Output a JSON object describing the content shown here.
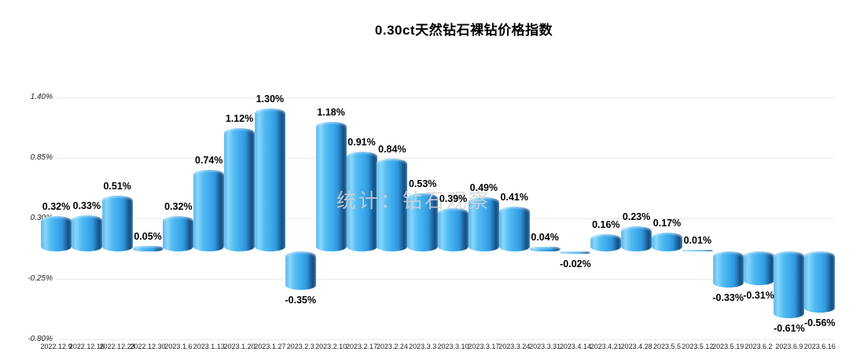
{
  "page": {
    "watermark": "统计：钻石观察"
  },
  "colors": {
    "background": "#ffffff",
    "bar_main": "#42aeec",
    "bar_highlight": "#8bd6fa",
    "bar_shadow_edge": "#174f82",
    "gridline": "#e9e9e9",
    "value_label_text": "#000000",
    "axis_text": "#222222",
    "watermark_text": "#d2d2d2"
  },
  "chart_data": {
    "type": "bar",
    "title": "0.30ct天然钻石裸钻价格指数",
    "xlabel": "",
    "ylabel": "",
    "unit": "%",
    "ylim": [
      -0.8,
      1.4
    ],
    "yticks": [
      1.4,
      0.85,
      0.3,
      -0.25,
      -0.8
    ],
    "ytick_labels": [
      "1.40%",
      "0.85%",
      "0.30%",
      "-0.25%",
      "-0.80%"
    ],
    "grid": true,
    "legend": false,
    "categories": [
      "2022.12.9",
      "2022.12.16",
      "2022.12.23",
      "2022.12.30",
      "2023.1.6",
      "2023.1.13",
      "2023.1.20",
      "2023.1.27",
      "2023.2.3",
      "2023.2.10",
      "2023.2.17",
      "2023.2.24",
      "2023.3.3",
      "2023.3.10",
      "2023.3.17",
      "2023.3.24",
      "2023.3.31",
      "2023.4.14",
      "2023.4.21",
      "2023.4.28",
      "2023.5.5",
      "2023.5.12",
      "2023.5.19",
      "2023.6.2",
      "2023.6.9",
      "2023.6.16"
    ],
    "values": [
      0.32,
      0.33,
      0.51,
      0.05,
      0.32,
      0.74,
      1.12,
      1.3,
      -0.35,
      1.18,
      0.91,
      0.84,
      0.53,
      0.39,
      0.49,
      0.41,
      0.04,
      -0.02,
      0.16,
      0.23,
      0.17,
      0.01,
      -0.33,
      -0.31,
      -0.61,
      -0.56
    ],
    "value_labels": [
      "0.32%",
      "0.33%",
      "0.51%",
      "0.05%",
      "0.32%",
      "0.74%",
      "1.12%",
      "1.30%",
      "-0.35%",
      "1.18%",
      "0.91%",
      "0.84%",
      "0.53%",
      "0.39%",
      "0.49%",
      "0.41%",
      "0.04%",
      "-0.02%",
      "0.16%",
      "0.23%",
      "0.17%",
      "0.01%",
      "-0.33%",
      "-0.31%",
      "-0.61%",
      "-0.56%"
    ]
  }
}
